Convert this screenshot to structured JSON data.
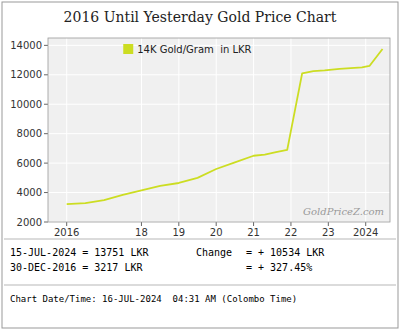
{
  "chart_data": {
    "type": "line",
    "title": "2016 Until Yesterday Gold Price Chart",
    "x": [
      2016.0,
      2016.5,
      2017.0,
      2017.5,
      2018.0,
      2018.5,
      2019.0,
      2019.5,
      2020.0,
      2020.5,
      2021.0,
      2021.3,
      2021.6,
      2021.9,
      2022.1,
      2022.3,
      2022.6,
      2022.9,
      2023.1,
      2023.3,
      2023.6,
      2023.9,
      2024.1,
      2024.45
    ],
    "series": [
      {
        "name": "14K Gold/Gram  in LKR",
        "color": "#ccdd22",
        "values": [
          3217,
          3280,
          3480,
          3850,
          4150,
          4450,
          4650,
          5000,
          5600,
          6050,
          6500,
          6580,
          6750,
          6900,
          9500,
          12100,
          12250,
          12300,
          12350,
          12400,
          12450,
          12500,
          12600,
          13751
        ]
      }
    ],
    "xlim": [
      2015.5,
      2024.65
    ],
    "xticks": [
      2016,
      {
        "value": 2018,
        "label": "18"
      },
      {
        "value": 2019,
        "label": "19"
      },
      {
        "value": 2020,
        "label": "20"
      },
      {
        "value": 2021,
        "label": "21"
      },
      {
        "value": 2022,
        "label": "22"
      },
      {
        "value": 2023,
        "label": "23"
      },
      2024
    ],
    "ylim": [
      2000,
      14500
    ],
    "yticks": [
      2000,
      4000,
      6000,
      8000,
      10000,
      12000,
      14000
    ],
    "grid": true,
    "legend": "upper left",
    "annotations": [
      "GoldPriceZ.com",
      "15-JUL-2024 = 13751 LKR",
      "30-DEC-2016 = 3217 LKR",
      "Change",
      "= + 10534 LKR",
      "= + 327.45%",
      "Chart Date/Time: 16-JUL-2024  04:31 AM (Colombo Time)"
    ]
  }
}
